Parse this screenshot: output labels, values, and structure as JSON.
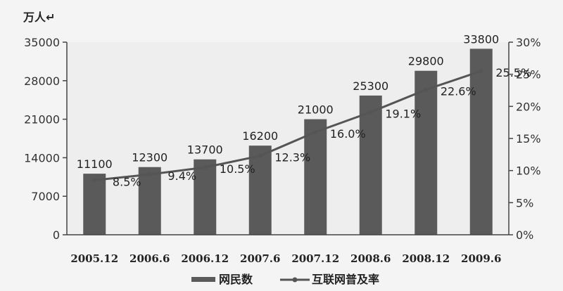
{
  "chart_data": {
    "type": "bar",
    "unit_label": "万人↵",
    "categories": [
      "2005.12",
      "2006.6",
      "2006.12",
      "2007.6",
      "2007.12",
      "2008.6",
      "2008.12",
      "2009.6"
    ],
    "series": [
      {
        "name": "网民数",
        "type": "bar",
        "axis": "left",
        "values": [
          11100,
          12300,
          13700,
          16200,
          21000,
          25300,
          29800,
          33800
        ],
        "labels": [
          "11100",
          "12300",
          "13700",
          "16200",
          "21000",
          "25300",
          "29800",
          "33800"
        ]
      },
      {
        "name": "互联网普及率",
        "type": "line",
        "axis": "right",
        "values": [
          8.5,
          9.4,
          10.5,
          12.3,
          16.0,
          19.1,
          22.6,
          25.5
        ],
        "labels": [
          "8.5%",
          "9.4%",
          "10.5%",
          "12.3%",
          "16.0%",
          "19.1%",
          "22.6%",
          "25.5%"
        ]
      }
    ],
    "ylim": [
      0,
      35000
    ],
    "y_ticks": [
      "0",
      "7000",
      "14000",
      "21000",
      "28000",
      "35000"
    ],
    "y2lim": [
      0,
      30
    ],
    "y2_ticks": [
      "0%",
      "5%",
      "10%",
      "15%",
      "20%",
      "25%",
      "30%"
    ],
    "legend_position": "bottom",
    "colors": {
      "bar": "#5a5a5a",
      "line": "#555555",
      "axis": "#444444"
    }
  }
}
